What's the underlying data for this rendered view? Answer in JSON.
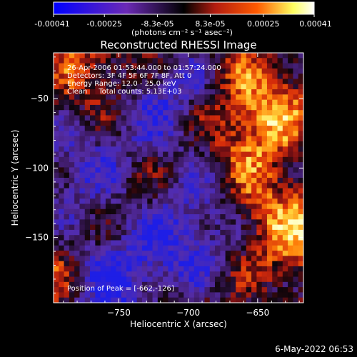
{
  "colorbar": {
    "tick_labels": [
      "-0.00041",
      "-0.00025",
      "-8.3e-05",
      "8.3e-05",
      "0.00025",
      "0.00041"
    ],
    "tick_values": [
      -0.00041,
      -0.00025,
      -8.3e-05,
      8.3e-05,
      0.00025,
      0.00041
    ],
    "range": [
      -0.00041,
      0.00041
    ],
    "units_label": "(photons cm⁻² s⁻¹ asec⁻²)",
    "colormap": [
      "#0000ff",
      "#6b2ab5",
      "#000000",
      "#b21c10",
      "#ff5a00",
      "#ffff60",
      "#ffffff"
    ]
  },
  "chart_data": {
    "type": "heatmap",
    "title": "Reconstructed RHESSI Image",
    "xlabel": "Heliocentric X (arcsec)",
    "ylabel": "Heliocentric Y (arcsec)",
    "xlim": [
      -797,
      -617
    ],
    "ylim": [
      -197,
      -17
    ],
    "x_ticks": [
      -750,
      -700,
      -650
    ],
    "y_ticks": [
      -50,
      -100,
      -150
    ],
    "x_tick_labels": [
      "−750",
      "−700",
      "−650"
    ],
    "y_tick_labels": [
      "−50",
      "−100",
      "−150"
    ],
    "peak": [
      -662,
      -126
    ],
    "annotations": [
      "26-Apr-2006 01:53:44.000 to 01:57:24.000",
      "Detectors: 3F 4F 5F 6F 7F 8F, Att 0",
      "Energy Range: 12.0 - 25.0 keV",
      "Clean     Total counts: 5.13E+03"
    ],
    "peak_label": "Position of Peak = [-662,-126]"
  },
  "footer": {
    "timestamp": "6-May-2022 06:53"
  }
}
